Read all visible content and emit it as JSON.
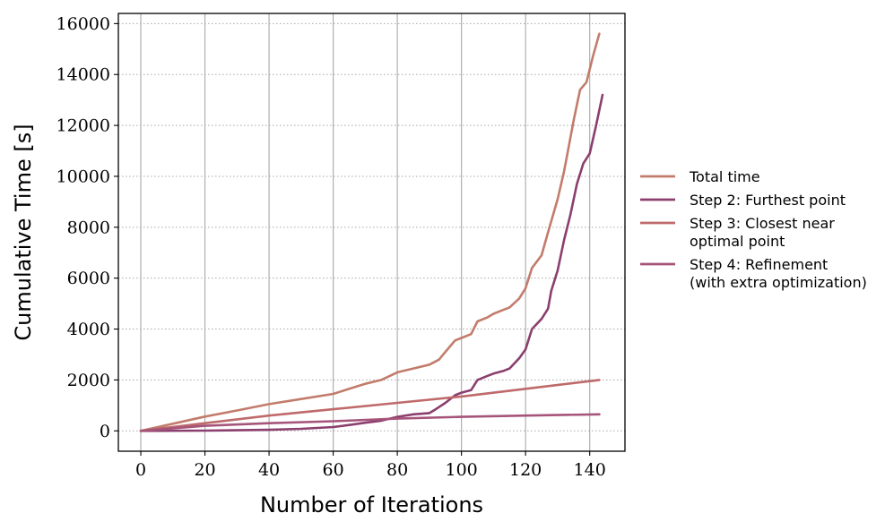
{
  "chart_data": {
    "type": "line",
    "xlabel": "Number of Iterations",
    "ylabel": "Cumulative Time [s]",
    "xlim": [
      -7,
      151
    ],
    "ylim": [
      -800,
      16400
    ],
    "xticks": [
      0,
      20,
      40,
      60,
      80,
      100,
      120,
      140
    ],
    "yticks": [
      0,
      2000,
      4000,
      6000,
      8000,
      10000,
      12000,
      14000,
      16000
    ],
    "xtick_labels": [
      "0",
      "20",
      "40",
      "60",
      "80",
      "100",
      "120",
      "140"
    ],
    "ytick_labels": [
      "0",
      "2000",
      "4000",
      "6000",
      "8000",
      "10000",
      "12000",
      "14000",
      "16000"
    ],
    "grid": {
      "x": "solid",
      "y": "dotted"
    },
    "legend_placement": "outside-right",
    "series": [
      {
        "name": "Total time",
        "legend_lines": [
          "Total time"
        ],
        "color": "#c27c6c",
        "x": [
          0,
          10,
          20,
          30,
          40,
          50,
          60,
          65,
          70,
          75,
          80,
          85,
          90,
          93,
          95,
          98,
          100,
          103,
          105,
          108,
          110,
          113,
          115,
          118,
          120,
          122,
          125,
          127,
          130,
          132,
          135,
          137,
          139,
          141,
          143
        ],
        "y": [
          0,
          280,
          560,
          800,
          1050,
          1250,
          1450,
          1650,
          1850,
          2000,
          2300,
          2450,
          2600,
          2800,
          3100,
          3550,
          3650,
          3800,
          4300,
          4450,
          4600,
          4750,
          4850,
          5200,
          5600,
          6400,
          6900,
          7800,
          9100,
          10200,
          12200,
          13400,
          13700,
          14700,
          15600
        ]
      },
      {
        "name": "Step 2: Furthest point",
        "legend_lines": [
          "Step 2: Furthest point"
        ],
        "color": "#8b3f6e",
        "x": [
          0,
          20,
          40,
          50,
          60,
          65,
          70,
          75,
          80,
          85,
          90,
          92,
          95,
          98,
          100,
          103,
          105,
          108,
          110,
          113,
          115,
          118,
          120,
          122,
          125,
          127,
          128,
          130,
          132,
          134,
          136,
          138,
          140,
          142,
          144
        ],
        "y": [
          0,
          10,
          40,
          80,
          150,
          230,
          320,
          400,
          550,
          650,
          700,
          850,
          1100,
          1400,
          1500,
          1600,
          2000,
          2150,
          2250,
          2350,
          2450,
          2850,
          3200,
          4000,
          4400,
          4800,
          5500,
          6300,
          7500,
          8500,
          9700,
          10500,
          10900,
          12000,
          13200
        ]
      },
      {
        "name": "Step 3: Closest near optimal point",
        "legend_lines": [
          "Step 3: Closest near",
          "optimal point"
        ],
        "color": "#bf6a6b",
        "x": [
          0,
          20,
          40,
          60,
          80,
          100,
          120,
          143
        ],
        "y": [
          0,
          300,
          600,
          850,
          1100,
          1350,
          1650,
          2000
        ]
      },
      {
        "name": "Step 4: Refinement (with extra optimization)",
        "legend_lines": [
          "Step 4: Refinement",
          "(with extra optimization)"
        ],
        "color": "#a6547a",
        "x": [
          0,
          20,
          40,
          60,
          80,
          100,
          120,
          143
        ],
        "y": [
          0,
          200,
          300,
          380,
          480,
          550,
          600,
          650
        ]
      }
    ]
  }
}
